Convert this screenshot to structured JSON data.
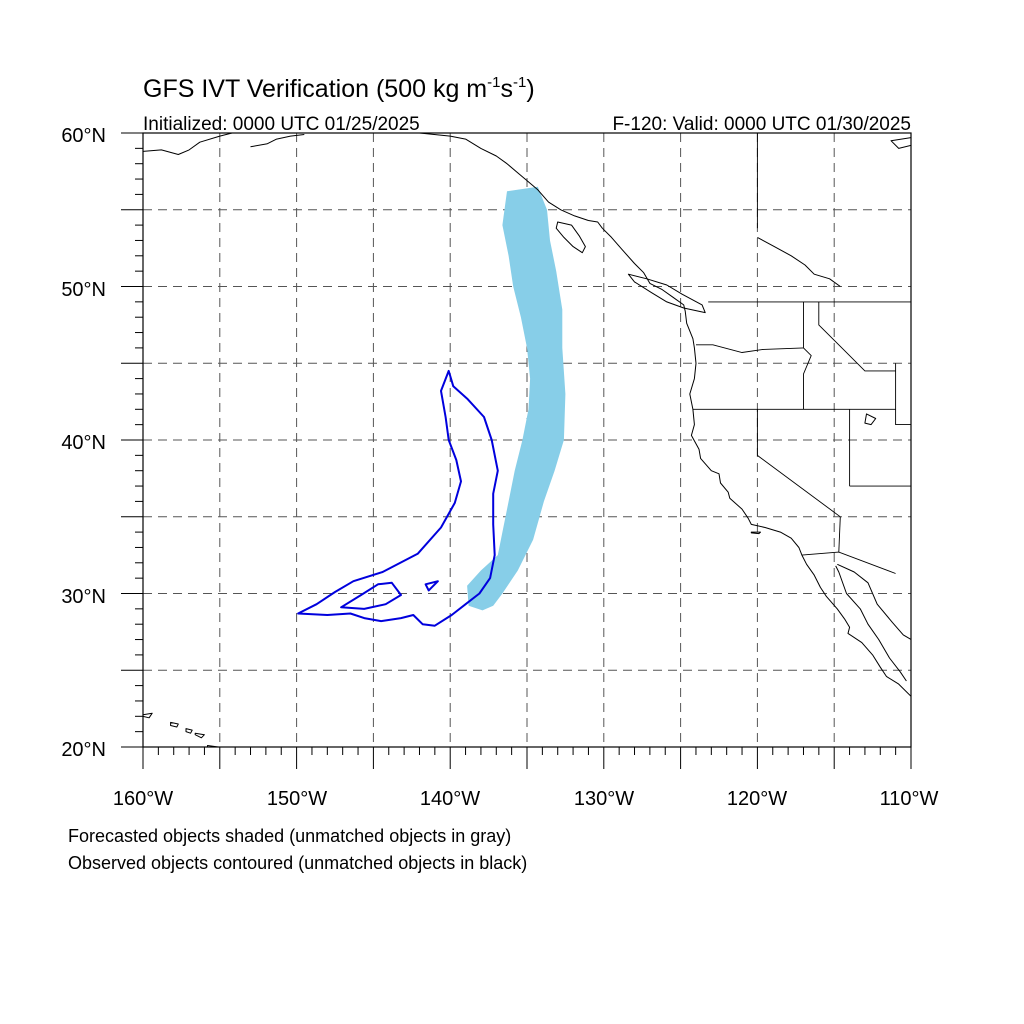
{
  "figure": {
    "title_main": "GFS IVT Verification (500 kg m",
    "title_sup1": "-1",
    "title_mid": "s",
    "title_sup2": "-1",
    "title_end": ")",
    "init_label": "Initialized: 0000 UTC 01/25/2025",
    "valid_label": "F-120: Valid: 0000 UTC 01/30/2025",
    "caption_line1": "Forecasted objects shaded (unmatched objects in gray)",
    "caption_line2": "Observed objects contoured (unmatched objects in black)"
  },
  "map": {
    "lon_range": [
      -160,
      -110
    ],
    "lat_range": [
      20,
      60
    ],
    "lat_labels": [
      "60°N",
      "50°N",
      "40°N",
      "30°N",
      "20°N"
    ],
    "lon_labels": [
      "160°W",
      "150°W",
      "140°W",
      "130°W",
      "120°W",
      "110°W"
    ],
    "gridline_style": "dashed",
    "colors": {
      "forecast_fill": "#87CEE8",
      "observed_contour": "#0000DD",
      "coastline": "#000000",
      "grid": "#555555"
    },
    "forecast_object": {
      "name": "forecast-ivt-object",
      "outline_lonlat": [
        [
          -136.3,
          56.2
        ],
        [
          -134.3,
          56.5
        ],
        [
          -133.7,
          55.0
        ],
        [
          -133.5,
          53.0
        ],
        [
          -133.1,
          51.0
        ],
        [
          -132.7,
          48.5
        ],
        [
          -132.7,
          46.0
        ],
        [
          -132.5,
          43.0
        ],
        [
          -132.6,
          40.0
        ],
        [
          -133.2,
          38.0
        ],
        [
          -133.9,
          36.0
        ],
        [
          -134.6,
          33.5
        ],
        [
          -135.6,
          31.5
        ],
        [
          -136.6,
          30.0
        ],
        [
          -137.2,
          29.2
        ],
        [
          -137.9,
          28.9
        ],
        [
          -138.8,
          29.2
        ],
        [
          -138.9,
          30.5
        ],
        [
          -138.0,
          31.5
        ],
        [
          -136.9,
          32.5
        ],
        [
          -136.6,
          34.0
        ],
        [
          -136.2,
          36.0
        ],
        [
          -135.8,
          38.0
        ],
        [
          -135.3,
          40.0
        ],
        [
          -134.9,
          42.0
        ],
        [
          -134.8,
          44.0
        ],
        [
          -135.0,
          46.0
        ],
        [
          -135.4,
          48.0
        ],
        [
          -135.9,
          50.0
        ],
        [
          -136.2,
          52.0
        ],
        [
          -136.6,
          54.0
        ],
        [
          -136.4,
          55.5
        ]
      ]
    },
    "observed_object": {
      "name": "observed-ivt-contour",
      "outline_lonlat": [
        [
          -140.1,
          44.5
        ],
        [
          -139.8,
          43.5
        ],
        [
          -138.9,
          42.7
        ],
        [
          -137.8,
          41.5
        ],
        [
          -137.3,
          40.0
        ],
        [
          -136.9,
          38.0
        ],
        [
          -137.2,
          36.5
        ],
        [
          -137.2,
          34.5
        ],
        [
          -137.1,
          32.5
        ],
        [
          -137.4,
          31.0
        ],
        [
          -138.1,
          30.0
        ],
        [
          -139.0,
          29.3
        ],
        [
          -139.9,
          28.6
        ],
        [
          -141.0,
          27.9
        ],
        [
          -141.8,
          28.0
        ],
        [
          -142.4,
          28.6
        ],
        [
          -143.2,
          28.4
        ],
        [
          -144.5,
          28.2
        ],
        [
          -145.6,
          28.4
        ],
        [
          -146.5,
          28.7
        ],
        [
          -148.0,
          28.6
        ],
        [
          -149.9,
          28.7
        ],
        [
          -148.7,
          29.3
        ],
        [
          -147.5,
          30.1
        ],
        [
          -146.3,
          30.8
        ],
        [
          -144.4,
          31.4
        ],
        [
          -142.1,
          32.6
        ],
        [
          -140.6,
          34.3
        ],
        [
          -139.7,
          35.9
        ],
        [
          -139.3,
          37.3
        ],
        [
          -139.6,
          38.7
        ],
        [
          -140.1,
          40.0
        ],
        [
          -140.3,
          41.5
        ],
        [
          -140.6,
          43.2
        ]
      ],
      "inner_outline_lonlat": [
        [
          -147.1,
          29.1
        ],
        [
          -145.8,
          29.9
        ],
        [
          -144.7,
          30.6
        ],
        [
          -143.8,
          30.7
        ],
        [
          -143.2,
          29.9
        ],
        [
          -144.2,
          29.3
        ],
        [
          -145.6,
          29.0
        ]
      ],
      "islet_outline_lonlat": [
        [
          -141.4,
          30.2
        ],
        [
          -140.8,
          30.8
        ],
        [
          -141.6,
          30.6
        ]
      ]
    },
    "land": {
      "alaska_panhandle": [
        [
          -150.0,
          60.0
        ],
        [
          -148.0,
          60.0
        ],
        [
          -146.5,
          60.0
        ],
        [
          -145.0,
          60.0
        ],
        [
          -144.0,
          60.0
        ],
        [
          -142.0,
          60.0
        ],
        [
          -140.0,
          59.8
        ],
        [
          -139.0,
          59.6
        ],
        [
          -138.0,
          59.0
        ],
        [
          -137.0,
          58.5
        ],
        [
          -136.3,
          58.0
        ],
        [
          -135.6,
          57.4
        ],
        [
          -135.0,
          56.9
        ],
        [
          -134.3,
          56.3
        ],
        [
          -133.6,
          55.5
        ],
        [
          -132.8,
          55.0
        ],
        [
          -131.9,
          54.6
        ],
        [
          -131.0,
          54.3
        ],
        [
          -130.4,
          54.2
        ],
        [
          -130.1,
          53.8
        ]
      ],
      "west_coast": [
        [
          -130.1,
          53.8
        ],
        [
          -129.5,
          53.2
        ],
        [
          -128.8,
          52.4
        ],
        [
          -128.0,
          51.5
        ],
        [
          -127.4,
          50.9
        ],
        [
          -127.0,
          50.2
        ],
        [
          -126.2,
          49.8
        ],
        [
          -125.5,
          49.3
        ],
        [
          -124.8,
          48.8
        ],
        [
          -124.7,
          48.4
        ],
        [
          -124.6,
          47.6
        ],
        [
          -124.2,
          46.6
        ],
        [
          -124.1,
          46.0
        ],
        [
          -124.0,
          45.0
        ],
        [
          -124.1,
          44.0
        ],
        [
          -124.4,
          43.0
        ],
        [
          -124.2,
          42.0
        ],
        [
          -124.1,
          41.0
        ],
        [
          -124.3,
          40.3
        ],
        [
          -123.8,
          39.4
        ],
        [
          -123.7,
          38.8
        ],
        [
          -123.0,
          38.0
        ],
        [
          -122.5,
          37.8
        ],
        [
          -122.4,
          37.2
        ],
        [
          -121.9,
          36.6
        ],
        [
          -121.8,
          36.2
        ],
        [
          -121.0,
          35.5
        ],
        [
          -120.6,
          34.9
        ],
        [
          -120.4,
          34.5
        ],
        [
          -119.5,
          34.3
        ],
        [
          -118.5,
          34.0
        ],
        [
          -117.8,
          33.6
        ],
        [
          -117.3,
          33.0
        ],
        [
          -117.1,
          32.5
        ],
        [
          -116.8,
          31.9
        ],
        [
          -116.3,
          31.2
        ],
        [
          -115.9,
          30.4
        ],
        [
          -115.5,
          29.8
        ],
        [
          -114.8,
          29.0
        ],
        [
          -114.3,
          28.3
        ],
        [
          -114.0,
          27.8
        ],
        [
          -114.1,
          27.4
        ],
        [
          -113.2,
          26.8
        ],
        [
          -112.5,
          26.0
        ],
        [
          -112.0,
          25.2
        ],
        [
          -111.6,
          24.6
        ],
        [
          -110.8,
          24.1
        ],
        [
          -110.0,
          23.3
        ]
      ],
      "gulf_california_west": [
        [
          -110.3,
          24.3
        ],
        [
          -110.7,
          24.9
        ],
        [
          -111.4,
          25.8
        ],
        [
          -112.1,
          27.0
        ],
        [
          -112.8,
          28.0
        ],
        [
          -113.3,
          29.0
        ],
        [
          -114.2,
          30.0
        ],
        [
          -114.7,
          31.4
        ],
        [
          -114.9,
          31.8
        ]
      ],
      "gulf_california_east": [
        [
          -114.8,
          31.9
        ],
        [
          -113.7,
          31.4
        ],
        [
          -112.8,
          30.7
        ],
        [
          -112.2,
          29.3
        ],
        [
          -111.2,
          28.1
        ],
        [
          -110.5,
          27.3
        ],
        [
          -110.0,
          27.0
        ]
      ],
      "vancouver_island": [
        [
          -128.4,
          50.8
        ],
        [
          -127.2,
          50.5
        ],
        [
          -125.9,
          50.1
        ],
        [
          -124.9,
          49.5
        ],
        [
          -123.6,
          48.8
        ],
        [
          -123.4,
          48.3
        ],
        [
          -124.8,
          48.6
        ],
        [
          -125.9,
          49.0
        ],
        [
          -126.9,
          49.6
        ],
        [
          -128.0,
          50.3
        ]
      ],
      "haida_gwaii": [
        [
          -133.0,
          54.2
        ],
        [
          -132.1,
          54.0
        ],
        [
          -131.6,
          53.3
        ],
        [
          -131.2,
          52.6
        ],
        [
          -131.4,
          52.2
        ],
        [
          -132.0,
          52.6
        ],
        [
          -132.6,
          53.2
        ],
        [
          -133.1,
          53.8
        ]
      ],
      "channel_islands": [
        [
          -120.4,
          34.0
        ],
        [
          -119.8,
          34.0
        ],
        [
          -119.9,
          33.9
        ],
        [
          -120.4,
          33.95
        ]
      ],
      "hawaii_1": [
        [
          -160.0,
          22.1
        ],
        [
          -159.4,
          22.2
        ],
        [
          -159.6,
          21.9
        ],
        [
          -160.0,
          22.0
        ]
      ],
      "hawaii_2": [
        [
          -158.2,
          21.6
        ],
        [
          -157.7,
          21.5
        ],
        [
          -157.8,
          21.3
        ],
        [
          -158.2,
          21.4
        ]
      ],
      "hawaii_3": [
        [
          -157.2,
          21.2
        ],
        [
          -156.8,
          21.1
        ],
        [
          -156.9,
          20.9
        ],
        [
          -157.2,
          21.0
        ]
      ],
      "hawaii_4": [
        [
          -156.6,
          20.9
        ],
        [
          -156.0,
          20.8
        ],
        [
          -156.2,
          20.6
        ],
        [
          -156.6,
          20.8
        ]
      ],
      "hawaii_5": [
        [
          -155.8,
          20.1
        ],
        [
          -155.1,
          20.0
        ],
        [
          -155.0,
          19.5
        ],
        [
          -155.8,
          19.6
        ]
      ],
      "alaska_sw": [
        [
          -160.0,
          58.8
        ],
        [
          -158.8,
          58.9
        ],
        [
          -157.7,
          58.6
        ],
        [
          -157.0,
          58.9
        ],
        [
          -156.3,
          59.4
        ],
        [
          -155.0,
          59.8
        ],
        [
          -154.2,
          60.0
        ]
      ],
      "kenai_piece": [
        [
          -153.0,
          59.1
        ],
        [
          -151.9,
          59.3
        ],
        [
          -151.3,
          59.6
        ],
        [
          -150.4,
          59.8
        ],
        [
          -149.5,
          59.9
        ]
      ],
      "ne_corner": [
        [
          -110.0,
          59.2
        ],
        [
          -110.8,
          59.0
        ],
        [
          -111.3,
          59.5
        ],
        [
          -110.0,
          59.7
        ]
      ],
      "lake_canada": [
        [
          -120.0,
          53.2
        ],
        [
          -118.9,
          52.6
        ],
        [
          -117.8,
          52.0
        ],
        [
          -116.9,
          51.4
        ],
        [
          -116.3,
          50.8
        ],
        [
          -115.3,
          50.5
        ],
        [
          -114.6,
          50.0
        ]
      ],
      "great_salt_lake": [
        [
          -112.9,
          41.7
        ],
        [
          -112.3,
          41.4
        ],
        [
          -112.6,
          41.0
        ],
        [
          -113.0,
          41.1
        ]
      ]
    },
    "borders": {
      "us_canada": [
        [
          -123.2,
          49.0
        ],
        [
          -110.0,
          49.0
        ]
      ],
      "or_wa": [
        [
          -124.0,
          46.2
        ],
        [
          -122.9,
          46.2
        ],
        [
          -121.0,
          45.7
        ],
        [
          -119.6,
          45.9
        ],
        [
          -117.0,
          46.0
        ]
      ],
      "wa_id": [
        [
          -117.0,
          49.0
        ],
        [
          -117.0,
          46.0
        ]
      ],
      "or_ca_nv": [
        [
          -124.2,
          42.0
        ],
        [
          -111.0,
          42.0
        ]
      ],
      "or_id": [
        [
          -117.0,
          46.0
        ],
        [
          -116.5,
          45.5
        ],
        [
          -117.0,
          44.3
        ],
        [
          -117.0,
          42.0
        ]
      ],
      "id_mt": [
        [
          -116.0,
          49.0
        ],
        [
          -116.0,
          47.5
        ],
        [
          -114.5,
          46.0
        ],
        [
          -113.0,
          44.5
        ],
        [
          -111.0,
          44.5
        ]
      ],
      "ca_nv": [
        [
          -120.0,
          42.0
        ],
        [
          -120.0,
          39.0
        ],
        [
          -114.6,
          35.0
        ]
      ],
      "nv_ut": [
        [
          -114.0,
          42.0
        ],
        [
          -114.0,
          37.0
        ]
      ],
      "az_ca": [
        [
          -114.6,
          35.0
        ],
        [
          -114.7,
          32.7
        ]
      ],
      "us_mexico": [
        [
          -117.1,
          32.5
        ],
        [
          -114.7,
          32.7
        ],
        [
          -111.0,
          31.3
        ]
      ],
      "ut_az": [
        [
          -114.0,
          37.0
        ],
        [
          -110.0,
          37.0
        ]
      ],
      "wy_border": [
        [
          -111.0,
          45.0
        ],
        [
          -111.0,
          41.0
        ],
        [
          -110.0,
          41.0
        ]
      ],
      "bc_ab": [
        [
          -120.0,
          60.0
        ],
        [
          -120.0,
          53.8
        ]
      ]
    }
  }
}
